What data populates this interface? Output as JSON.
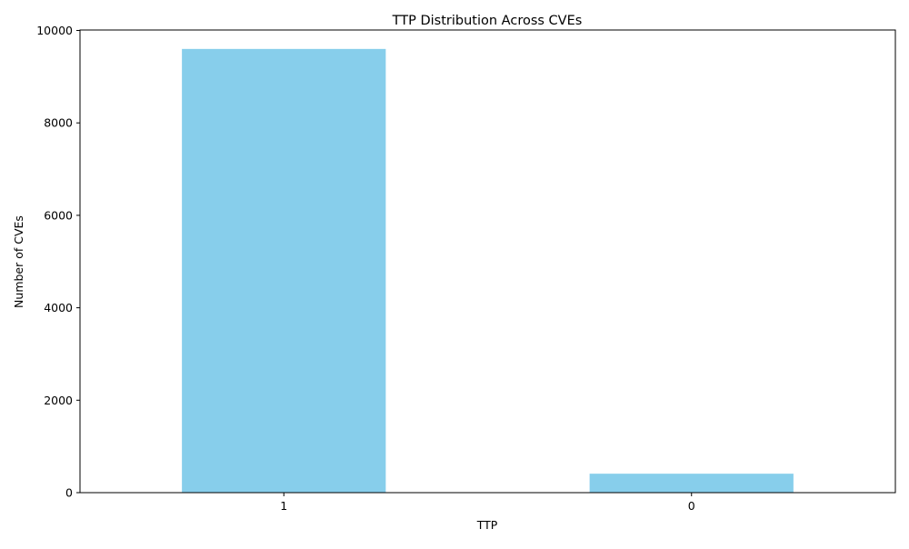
{
  "chart_data": {
    "type": "bar",
    "title": "TTP Distribution Across CVEs",
    "xlabel": "TTP",
    "ylabel": "Number of CVEs",
    "categories": [
      "1",
      "0"
    ],
    "values": [
      9600,
      410
    ],
    "ylim": [
      0,
      10000
    ],
    "yticks": [
      0,
      2000,
      4000,
      6000,
      8000,
      10000
    ],
    "ytick_labels": [
      "0",
      "2000",
      "4000",
      "6000",
      "8000",
      "10000"
    ],
    "bar_color": "#87ceeb",
    "grid": false,
    "legend": "none"
  }
}
